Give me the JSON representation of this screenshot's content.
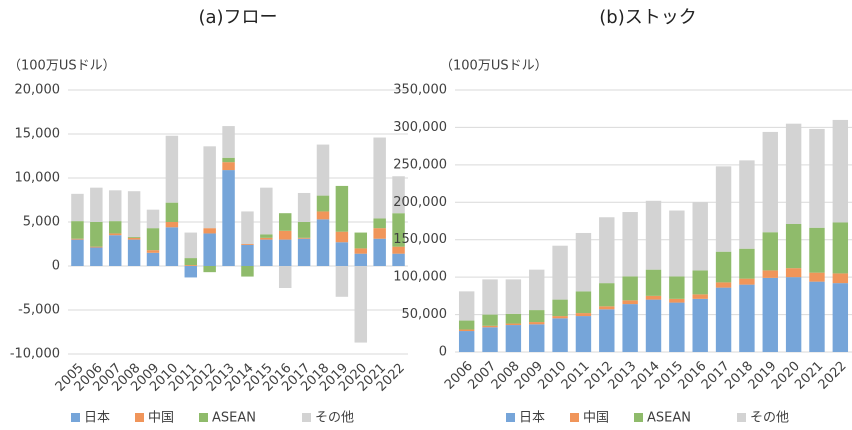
{
  "chart_data": [
    {
      "type": "bar",
      "stacked": true,
      "title": "(a)フロー",
      "y_label": "（100万USドル）",
      "categories": [
        "2005",
        "2006",
        "2007",
        "2008",
        "2009",
        "2010",
        "2011",
        "2012",
        "2013",
        "2014",
        "2015",
        "2016",
        "2017",
        "2018",
        "2019",
        "2020",
        "2021",
        "2022"
      ],
      "series": [
        {
          "name": "日本",
          "color": "#76a5d9",
          "values": [
            3000,
            2100,
            3500,
            3000,
            1500,
            4400,
            -1300,
            3700,
            10900,
            2400,
            3000,
            3000,
            3100,
            5300,
            2700,
            1400,
            3100,
            1400
          ]
        },
        {
          "name": "中国",
          "color": "#f0955a",
          "values": [
            100,
            100,
            200,
            200,
            300,
            600,
            100,
            600,
            900,
            100,
            200,
            1000,
            100,
            900,
            1200,
            600,
            1200,
            800
          ]
        },
        {
          "name": "ASEAN",
          "color": "#8fbb6b",
          "values": [
            2000,
            2800,
            1400,
            100,
            2500,
            2200,
            800,
            -700,
            500,
            -1200,
            400,
            2000,
            1800,
            1800,
            5200,
            1800,
            1100,
            3800
          ]
        },
        {
          "name": "その他",
          "color": "#d3d3d3",
          "values": [
            3100,
            3900,
            3500,
            5200,
            2100,
            7600,
            2900,
            9300,
            3600,
            3700,
            5300,
            -2500,
            3300,
            5800,
            -3500,
            -8700,
            9200,
            4200
          ]
        }
      ],
      "ylim": [
        -10000,
        20000
      ],
      "yticks": [
        {
          "value": -10000,
          "label": "-10,000"
        },
        {
          "value": -5000,
          "label": "-5,000"
        },
        0,
        {
          "value": 5000,
          "label": "5,000"
        },
        {
          "value": 10000,
          "label": "10,000"
        },
        {
          "value": 15000,
          "label": "15,000"
        },
        {
          "value": 20000,
          "label": "20,000"
        }
      ],
      "grid": true
    },
    {
      "type": "bar",
      "stacked": true,
      "title": "(b)ストック",
      "y_label": "（100万USドル）",
      "categories": [
        "2006",
        "2007",
        "2008",
        "2009",
        "2010",
        "2011",
        "2012",
        "2013",
        "2014",
        "2015",
        "2016",
        "2017",
        "2018",
        "2019",
        "2020",
        "2021",
        "2022"
      ],
      "series": [
        {
          "name": "日本",
          "color": "#76a5d9",
          "values": [
            28000,
            33000,
            36000,
            37000,
            45000,
            48000,
            57000,
            64000,
            70000,
            66000,
            71000,
            86000,
            90000,
            99000,
            100000,
            94000,
            92000
          ]
        },
        {
          "name": "中国",
          "color": "#f0955a",
          "values": [
            2000,
            2000,
            2000,
            3000,
            3000,
            4000,
            4000,
            5000,
            5000,
            5000,
            6000,
            7000,
            8000,
            10000,
            12000,
            12000,
            13000
          ]
        },
        {
          "name": "ASEAN",
          "color": "#8fbb6b",
          "values": [
            12000,
            15000,
            13000,
            16000,
            22000,
            29000,
            31000,
            32000,
            35000,
            30000,
            32000,
            41000,
            40000,
            51000,
            59000,
            60000,
            68000
          ]
        },
        {
          "name": "その他",
          "color": "#d3d3d3",
          "values": [
            39000,
            47000,
            46000,
            54000,
            72000,
            78000,
            88000,
            86000,
            92000,
            88000,
            91000,
            114000,
            118000,
            134000,
            134000,
            132000,
            137000
          ]
        }
      ],
      "ylim": [
        0,
        350000
      ],
      "yticks": [
        0,
        {
          "value": 50000,
          "label": "50,000"
        },
        {
          "value": 100000,
          "label": "100,000"
        },
        {
          "value": 150000,
          "label": "150,000"
        },
        {
          "value": 200000,
          "label": "200,000"
        },
        {
          "value": 250000,
          "label": "250,000"
        },
        {
          "value": 300000,
          "label": "300,000"
        },
        {
          "value": 350000,
          "label": "350,000"
        }
      ],
      "grid": true
    }
  ]
}
